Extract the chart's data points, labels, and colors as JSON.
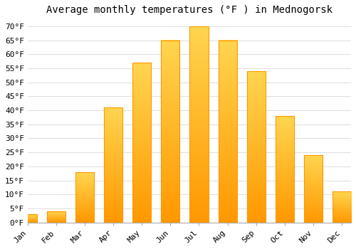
{
  "title": "Average monthly temperatures (°F ) in Mednogorsk",
  "months": [
    "Jan",
    "Feb",
    "Mar",
    "Apr",
    "May",
    "Jun",
    "Jul",
    "Aug",
    "Sep",
    "Oct",
    "Nov",
    "Dec"
  ],
  "values": [
    3,
    4,
    18,
    41,
    57,
    65,
    70,
    65,
    54,
    38,
    24,
    11
  ],
  "bar_color_top": "#FFD54F",
  "bar_color_bottom": "#FF9800",
  "background_color": "#FFFFFF",
  "grid_color": "#DDDDDD",
  "yticks": [
    0,
    5,
    10,
    15,
    20,
    25,
    30,
    35,
    40,
    45,
    50,
    55,
    60,
    65,
    70
  ],
  "ylim": [
    0,
    72
  ],
  "title_fontsize": 10,
  "tick_fontsize": 8,
  "font_family": "monospace",
  "bar_width": 0.65
}
